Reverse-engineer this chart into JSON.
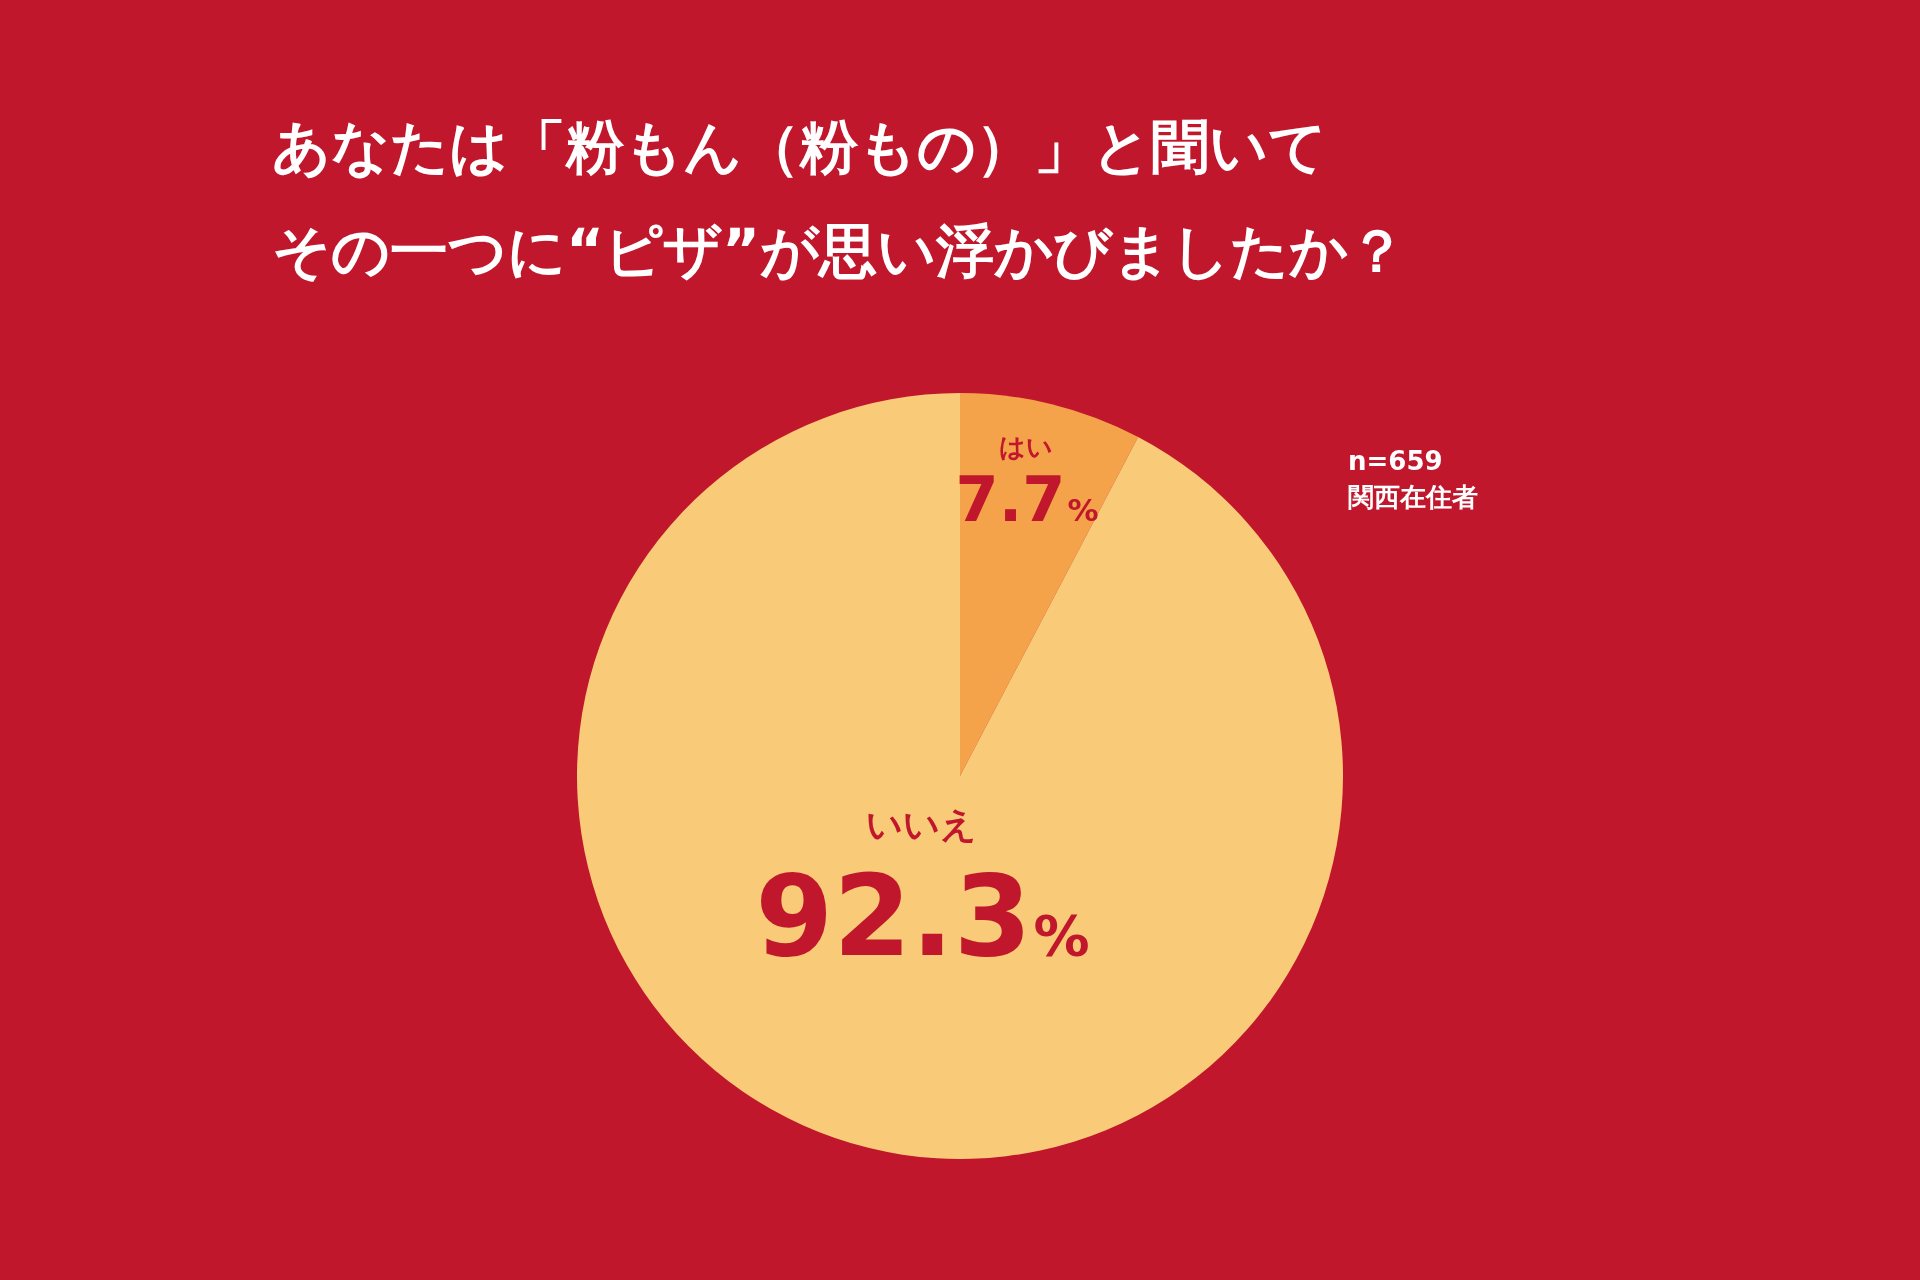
{
  "chart_data": {
    "type": "pie",
    "title": "あなたは「粉もん（粉もの）」と聞いて",
    "subtitle": "その一つに“ピザ”が思い浮かびましたか？",
    "categories": [
      "はい",
      "いいえ"
    ],
    "values": [
      7.7,
      92.3
    ],
    "colors": [
      "#f5a34a",
      "#f9ca77"
    ],
    "value_labels": [
      "7.7%",
      "92.3%"
    ],
    "annotations": [
      "n=659",
      "関西在住者"
    ],
    "legend": false
  }
}
